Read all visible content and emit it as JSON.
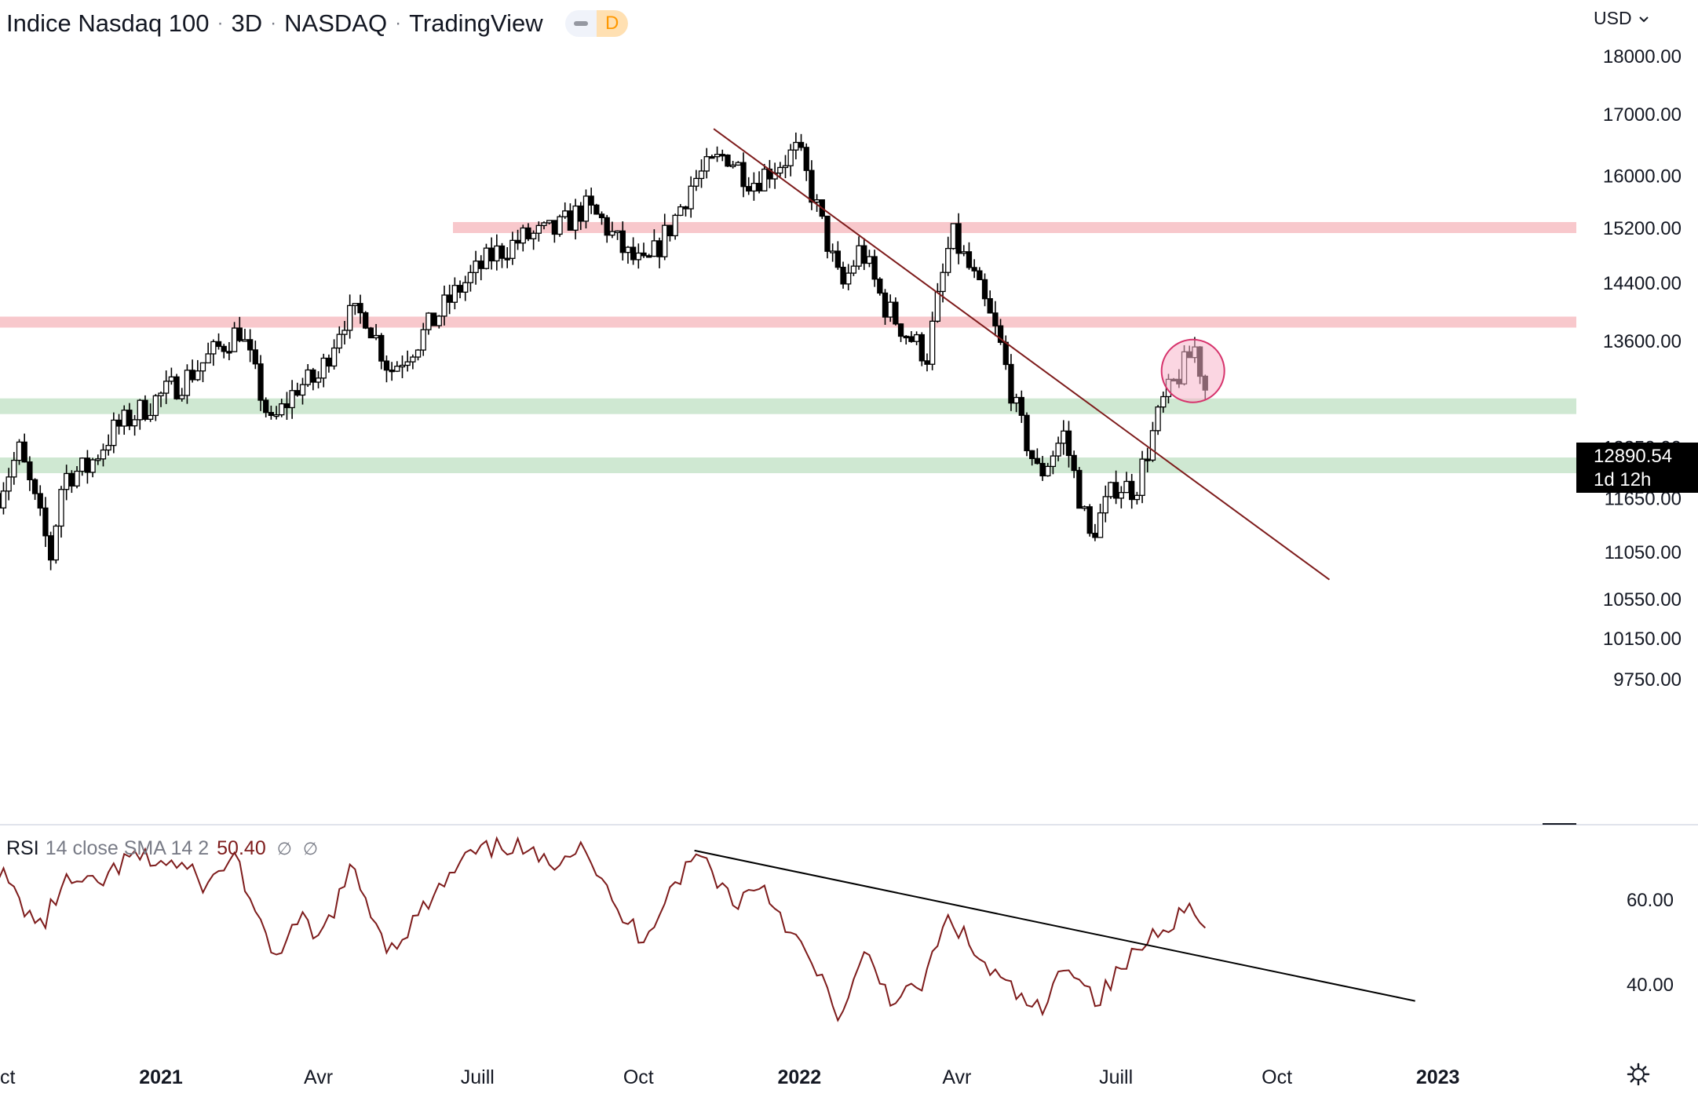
{
  "header": {
    "symbol": "Indice Nasdaq 100",
    "interval": "3D",
    "exchange": "NASDAQ",
    "source": "TradingView",
    "badge_letter": "D"
  },
  "currency": "USD",
  "last_price": {
    "value": "12890.54",
    "countdown": "1d 12h"
  },
  "rsi_header": {
    "name": "RSI",
    "params": "14 close SMA 14 2",
    "value": "50.40",
    "sym1": "∅",
    "sym2": "∅"
  },
  "colors": {
    "candle": "#000000",
    "trendline": "#7e1c1c",
    "resistance": "#f8c8cc",
    "support": "#cfe8d2",
    "circle_fill": "#f7b5cb",
    "circle_stroke": "#d6336c"
  },
  "chart_data": [
    {
      "type": "candlestick",
      "title": "Indice Nasdaq 100 · 3D · NASDAQ",
      "x_start": "2020-10-01",
      "bar_days": 3,
      "y_scale": "log",
      "y_ticks": [
        18000,
        17000,
        16000,
        15200,
        14400,
        13600,
        12250,
        11650,
        11050,
        10550,
        10150,
        9750
      ],
      "y_tick_labels": [
        "18000.00",
        "17000.00",
        "16000.00",
        "15200.00",
        "14400.00",
        "13600.00",
        "12250.00",
        "11650.00",
        "11050.00",
        "10550.00",
        "10150.00",
        "9750.00"
      ],
      "x_tick_labels": [
        {
          "date": "2020-10-01",
          "label": "Oct",
          "bold": false
        },
        {
          "date": "2021-01-01",
          "label": "2021",
          "bold": true
        },
        {
          "date": "2021-04-01",
          "label": "Avr",
          "bold": false
        },
        {
          "date": "2021-07-01",
          "label": "Juill",
          "bold": false
        },
        {
          "date": "2021-10-01",
          "label": "Oct",
          "bold": false
        },
        {
          "date": "2022-01-01",
          "label": "2022",
          "bold": true
        },
        {
          "date": "2022-04-01",
          "label": "Avr",
          "bold": false
        },
        {
          "date": "2022-07-01",
          "label": "Juill",
          "bold": false
        },
        {
          "date": "2022-10-01",
          "label": "Oct",
          "bold": false
        },
        {
          "date": "2023-01-01",
          "label": "2023",
          "bold": true
        }
      ],
      "waypoints": [
        [
          "2020-09-30",
          11700
        ],
        [
          "2020-10-12",
          12200
        ],
        [
          "2020-10-30",
          11000
        ],
        [
          "2020-11-06",
          11900
        ],
        [
          "2020-11-20",
          12000
        ],
        [
          "2020-12-05",
          12450
        ],
        [
          "2020-12-30",
          12850
        ],
        [
          "2021-01-15",
          13100
        ],
        [
          "2021-02-15",
          13750
        ],
        [
          "2021-03-05",
          12500
        ],
        [
          "2021-03-20",
          13000
        ],
        [
          "2021-04-01",
          13100
        ],
        [
          "2021-04-15",
          13900
        ],
        [
          "2021-04-28",
          13950
        ],
        [
          "2021-05-12",
          13200
        ],
        [
          "2021-05-28",
          13600
        ],
        [
          "2021-06-20",
          14300
        ],
        [
          "2021-07-10",
          14800
        ],
        [
          "2021-07-28",
          15050
        ],
        [
          "2021-08-15",
          15150
        ],
        [
          "2021-08-31",
          15500
        ],
        [
          "2021-09-10",
          15300
        ],
        [
          "2021-09-24",
          14800
        ],
        [
          "2021-10-05",
          14600
        ],
        [
          "2021-10-20",
          15250
        ],
        [
          "2021-11-01",
          15900
        ],
        [
          "2021-11-20",
          16350
        ],
        [
          "2021-12-05",
          15900
        ],
        [
          "2021-12-18",
          16150
        ],
        [
          "2021-12-31",
          16400
        ],
        [
          "2022-01-12",
          15400
        ],
        [
          "2022-01-25",
          14300
        ],
        [
          "2022-02-05",
          14900
        ],
        [
          "2022-02-18",
          14100
        ],
        [
          "2022-03-03",
          13700
        ],
        [
          "2022-03-15",
          13400
        ],
        [
          "2022-03-29",
          15100
        ],
        [
          "2022-04-10",
          14500
        ],
        [
          "2022-04-25",
          13600
        ],
        [
          "2022-05-06",
          12600
        ],
        [
          "2022-05-18",
          11900
        ],
        [
          "2022-06-01",
          12400
        ],
        [
          "2022-06-16",
          11200
        ],
        [
          "2022-07-01",
          11800
        ],
        [
          "2022-07-12",
          11750
        ],
        [
          "2022-07-28",
          12800
        ],
        [
          "2022-08-15",
          13500
        ],
        [
          "2022-08-22",
          12890.54
        ]
      ],
      "resistance_levels": [
        15200,
        13850
      ],
      "support_levels": [
        12750,
        12030
      ],
      "trendline": {
        "from": [
          "2021-11-13",
          16750
        ],
        "to": [
          "2022-10-31",
          10750
        ]
      },
      "highlight_circle": {
        "date": "2022-08-14",
        "price": 13200
      }
    },
    {
      "type": "line",
      "title": "RSI 14 close SMA 14 2",
      "y_ticks": [
        60,
        40
      ],
      "y_tick_labels": [
        "60.00",
        "40.00"
      ],
      "waypoints": [
        [
          "2020-09-30",
          67
        ],
        [
          "2020-10-13",
          59
        ],
        [
          "2020-10-25",
          53
        ],
        [
          "2020-11-06",
          64
        ],
        [
          "2020-11-25",
          63
        ],
        [
          "2020-12-15",
          70
        ],
        [
          "2021-01-12",
          68
        ],
        [
          "2021-01-28",
          63
        ],
        [
          "2021-02-12",
          71
        ],
        [
          "2021-03-05",
          46
        ],
        [
          "2021-03-22",
          55
        ],
        [
          "2021-04-01",
          50
        ],
        [
          "2021-04-20",
          67
        ],
        [
          "2021-05-12",
          48
        ],
        [
          "2021-05-30",
          57
        ],
        [
          "2021-06-25",
          70
        ],
        [
          "2021-07-20",
          73
        ],
        [
          "2021-08-10",
          68
        ],
        [
          "2021-08-30",
          74
        ],
        [
          "2021-09-18",
          57
        ],
        [
          "2021-10-04",
          51
        ],
        [
          "2021-10-20",
          63
        ],
        [
          "2021-11-05",
          71
        ],
        [
          "2021-11-25",
          59
        ],
        [
          "2021-12-10",
          64
        ],
        [
          "2021-12-22",
          56
        ],
        [
          "2022-01-10",
          43
        ],
        [
          "2022-01-25",
          32
        ],
        [
          "2022-02-08",
          47
        ],
        [
          "2022-02-22",
          37
        ],
        [
          "2022-03-10",
          38
        ],
        [
          "2022-03-28",
          56
        ],
        [
          "2022-04-15",
          45
        ],
        [
          "2022-05-06",
          37
        ],
        [
          "2022-05-20",
          33
        ],
        [
          "2022-06-03",
          46
        ],
        [
          "2022-06-20",
          36
        ],
        [
          "2022-07-05",
          44
        ],
        [
          "2022-07-25",
          53
        ],
        [
          "2022-08-16",
          59
        ],
        [
          "2022-08-22",
          50.4
        ]
      ],
      "trendline": {
        "from": [
          "2021-11-02",
          71.5
        ],
        "to": [
          "2022-12-19",
          36
        ]
      }
    }
  ]
}
